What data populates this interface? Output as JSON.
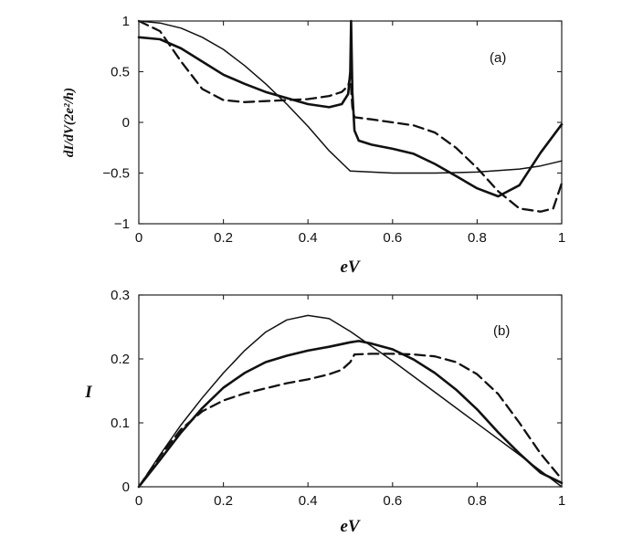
{
  "chart_data": [
    {
      "type": "line",
      "panel_label": "(a)",
      "xlabel": "eV",
      "ylabel": "dI/dV(2e²/h)",
      "xlim": [
        0,
        1
      ],
      "ylim": [
        -1,
        1
      ],
      "x_ticks": [
        "0",
        "0.2",
        "0.4",
        "0.6",
        "0.8",
        "1"
      ],
      "y_ticks": [
        "1",
        "0.5",
        "0",
        "−0.5",
        "−1"
      ],
      "grid": false,
      "series": [
        {
          "style": "thin-solid",
          "x": [
            0,
            0.05,
            0.1,
            0.15,
            0.2,
            0.25,
            0.3,
            0.35,
            0.4,
            0.45,
            0.5,
            0.55,
            0.6,
            0.7,
            0.8,
            0.9,
            0.95,
            1.0
          ],
          "y": [
            1.0,
            0.98,
            0.93,
            0.84,
            0.72,
            0.56,
            0.38,
            0.18,
            -0.04,
            -0.28,
            -0.48,
            -0.49,
            -0.5,
            -0.5,
            -0.49,
            -0.46,
            -0.43,
            -0.38
          ]
        },
        {
          "style": "thick-solid",
          "x": [
            0,
            0.05,
            0.1,
            0.15,
            0.2,
            0.25,
            0.3,
            0.35,
            0.4,
            0.45,
            0.48,
            0.495,
            0.5,
            0.502,
            0.505,
            0.51,
            0.52,
            0.55,
            0.6,
            0.65,
            0.7,
            0.75,
            0.8,
            0.85,
            0.9,
            0.95,
            1.0
          ],
          "y": [
            0.84,
            0.82,
            0.73,
            0.6,
            0.47,
            0.38,
            0.3,
            0.24,
            0.18,
            0.15,
            0.18,
            0.28,
            0.5,
            1.0,
            0.3,
            -0.08,
            -0.18,
            -0.22,
            -0.26,
            -0.31,
            -0.41,
            -0.53,
            -0.65,
            -0.73,
            -0.62,
            -0.3,
            -0.02
          ]
        },
        {
          "style": "dashed",
          "x": [
            0,
            0.05,
            0.1,
            0.15,
            0.2,
            0.25,
            0.3,
            0.35,
            0.4,
            0.45,
            0.48,
            0.495,
            0.5,
            0.505,
            0.51,
            0.55,
            0.6,
            0.65,
            0.7,
            0.75,
            0.8,
            0.85,
            0.9,
            0.95,
            0.98,
            1.0
          ],
          "y": [
            1.0,
            0.9,
            0.6,
            0.33,
            0.22,
            0.2,
            0.21,
            0.22,
            0.23,
            0.26,
            0.3,
            0.36,
            0.45,
            0.15,
            0.05,
            0.03,
            0.0,
            -0.03,
            -0.1,
            -0.25,
            -0.45,
            -0.68,
            -0.85,
            -0.88,
            -0.85,
            -0.6
          ]
        }
      ]
    },
    {
      "type": "line",
      "panel_label": "(b)",
      "xlabel": "eV",
      "ylabel": "I",
      "xlim": [
        0,
        1
      ],
      "ylim": [
        0,
        0.3
      ],
      "x_ticks": [
        "0",
        "0.2",
        "0.4",
        "0.6",
        "0.8",
        "1"
      ],
      "y_ticks": [
        "0.3",
        "0.2",
        "0.1",
        "0"
      ],
      "grid": false,
      "series": [
        {
          "style": "thin-solid",
          "x": [
            0,
            0.05,
            0.1,
            0.15,
            0.2,
            0.25,
            0.3,
            0.35,
            0.4,
            0.45,
            0.5,
            0.55,
            0.6,
            0.7,
            0.8,
            0.9,
            1.0
          ],
          "y": [
            0,
            0.05,
            0.097,
            0.139,
            0.178,
            0.213,
            0.242,
            0.261,
            0.268,
            0.263,
            0.243,
            0.22,
            0.197,
            0.148,
            0.099,
            0.05,
            0.0
          ]
        },
        {
          "style": "thick-solid",
          "x": [
            0,
            0.05,
            0.1,
            0.15,
            0.2,
            0.25,
            0.3,
            0.35,
            0.4,
            0.45,
            0.5,
            0.52,
            0.55,
            0.6,
            0.65,
            0.7,
            0.75,
            0.8,
            0.85,
            0.9,
            0.95,
            1.0
          ],
          "y": [
            0,
            0.042,
            0.085,
            0.123,
            0.155,
            0.178,
            0.195,
            0.205,
            0.213,
            0.219,
            0.226,
            0.228,
            0.224,
            0.215,
            0.199,
            0.178,
            0.152,
            0.121,
            0.085,
            0.052,
            0.022,
            0.006
          ]
        },
        {
          "style": "dashed",
          "x": [
            0,
            0.05,
            0.1,
            0.15,
            0.2,
            0.25,
            0.3,
            0.35,
            0.4,
            0.45,
            0.48,
            0.5,
            0.51,
            0.55,
            0.6,
            0.65,
            0.7,
            0.75,
            0.8,
            0.85,
            0.9,
            0.95,
            1.0
          ],
          "y": [
            0,
            0.048,
            0.09,
            0.118,
            0.135,
            0.146,
            0.154,
            0.162,
            0.168,
            0.176,
            0.183,
            0.195,
            0.207,
            0.208,
            0.208,
            0.207,
            0.204,
            0.195,
            0.176,
            0.145,
            0.1,
            0.052,
            0.012
          ]
        }
      ]
    }
  ]
}
